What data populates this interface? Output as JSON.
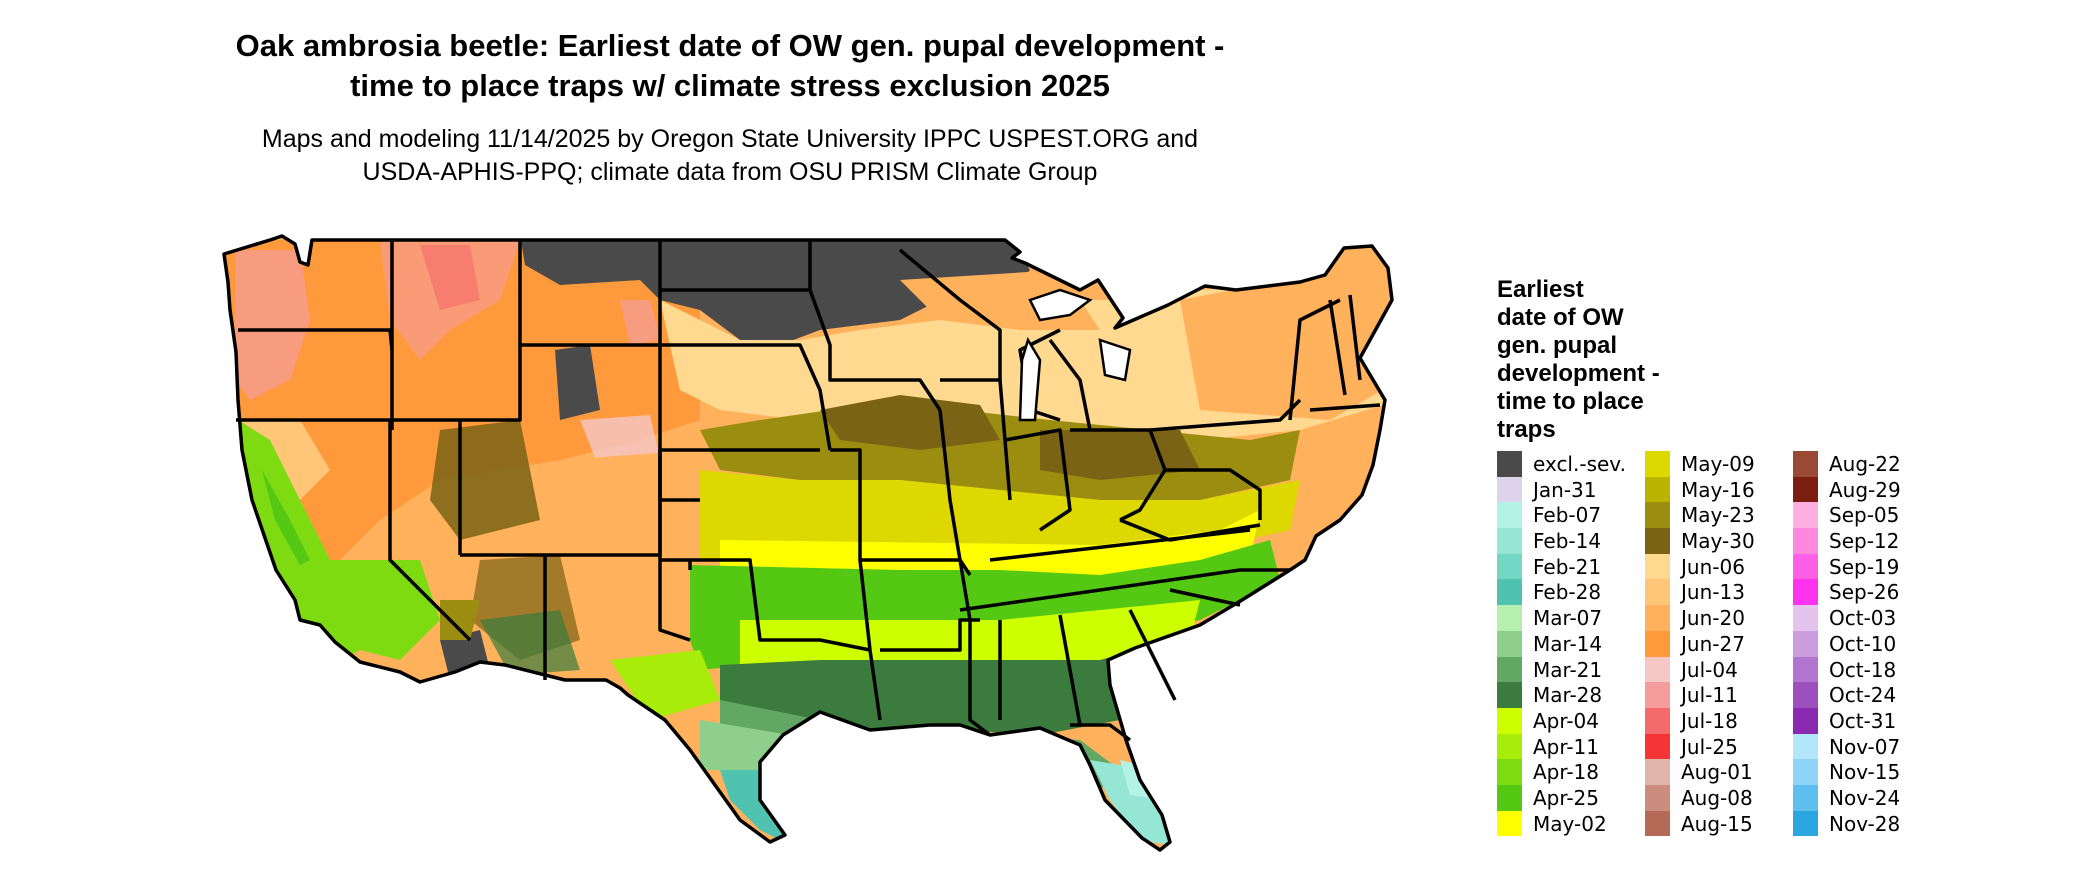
{
  "title": {
    "line1": "Oak ambrosia beetle: Earliest date of OW gen. pupal development -",
    "line2": "time to place traps w/ climate stress exclusion 2025"
  },
  "subtitle": {
    "line1": "Maps and modeling 11/14/2025 by Oregon State University IPPC USPEST.ORG and",
    "line2": "USDA-APHIS-PPQ; climate data from OSU PRISM Climate Group"
  },
  "legend": {
    "title": [
      "Earliest",
      "date of OW",
      "gen. pupal",
      "development -",
      "time to place",
      "traps"
    ],
    "columns": [
      [
        {
          "label": "excl.-sev.",
          "color": "#4a4a4a"
        },
        {
          "label": "Jan-31",
          "color": "#ddd4ec"
        },
        {
          "label": "Feb-07",
          "color": "#b3f2e4"
        },
        {
          "label": "Feb-14",
          "color": "#96e6d6"
        },
        {
          "label": "Feb-21",
          "color": "#74d6c4"
        },
        {
          "label": "Feb-28",
          "color": "#4fc2b0"
        },
        {
          "label": "Mar-07",
          "color": "#b6f0b0"
        },
        {
          "label": "Mar-14",
          "color": "#8fcf8e"
        },
        {
          "label": "Mar-21",
          "color": "#63a765"
        },
        {
          "label": "Mar-28",
          "color": "#3b7c3e"
        },
        {
          "label": "Apr-04",
          "color": "#ccff00"
        },
        {
          "label": "Apr-11",
          "color": "#a8ec0a"
        },
        {
          "label": "Apr-18",
          "color": "#7edb12"
        },
        {
          "label": "Apr-25",
          "color": "#55c814"
        },
        {
          "label": "May-02",
          "color": "#ffff00"
        }
      ],
      [
        {
          "label": "May-09",
          "color": "#ddd800"
        },
        {
          "label": "May-16",
          "color": "#bab400"
        },
        {
          "label": "May-23",
          "color": "#9a8d10"
        },
        {
          "label": "May-30",
          "color": "#7a6314"
        },
        {
          "label": "Jun-06",
          "color": "#ffd990"
        },
        {
          "label": "Jun-13",
          "color": "#ffc678"
        },
        {
          "label": "Jun-20",
          "color": "#ffb15c"
        },
        {
          "label": "Jun-27",
          "color": "#ff9a3c"
        },
        {
          "label": "Jul-04",
          "color": "#f5c7c7"
        },
        {
          "label": "Jul-11",
          "color": "#f59d9d"
        },
        {
          "label": "Jul-18",
          "color": "#f56b6b"
        },
        {
          "label": "Jul-25",
          "color": "#f53535"
        },
        {
          "label": "Aug-01",
          "color": "#e2b5ac"
        },
        {
          "label": "Aug-08",
          "color": "#cc8c7e"
        },
        {
          "label": "Aug-15",
          "color": "#b56a58"
        }
      ],
      [
        {
          "label": "Aug-22",
          "color": "#9a4a34"
        },
        {
          "label": "Aug-29",
          "color": "#7b1e10"
        },
        {
          "label": "Sep-05",
          "color": "#ffb0e0"
        },
        {
          "label": "Sep-12",
          "color": "#ff88df"
        },
        {
          "label": "Sep-19",
          "color": "#ff5fe6"
        },
        {
          "label": "Sep-26",
          "color": "#ff33ee"
        },
        {
          "label": "Oct-03",
          "color": "#e2c4ec"
        },
        {
          "label": "Oct-10",
          "color": "#cc9ddf"
        },
        {
          "label": "Oct-18",
          "color": "#b276d0"
        },
        {
          "label": "Oct-24",
          "color": "#9d50bd"
        },
        {
          "label": "Oct-31",
          "color": "#8a2ab0"
        },
        {
          "label": "Nov-07",
          "color": "#b2e6fb"
        },
        {
          "label": "Nov-15",
          "color": "#8ed4f6"
        },
        {
          "label": "Nov-24",
          "color": "#5ebfef"
        },
        {
          "label": "Nov-28",
          "color": "#2aa6e0"
        }
      ]
    ]
  }
}
